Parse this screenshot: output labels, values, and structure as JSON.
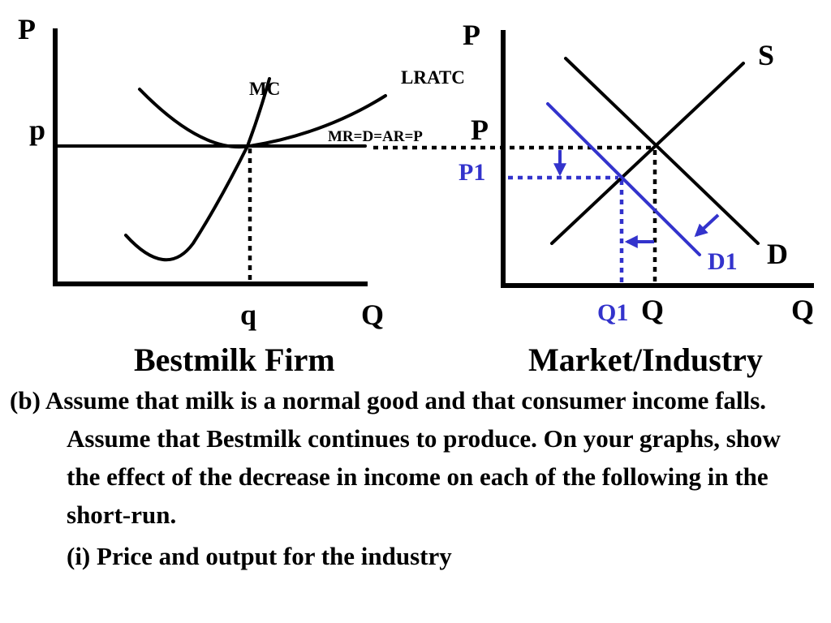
{
  "firm_graph": {
    "y_axis_label": "P",
    "x_axis_label": "Q",
    "price_label": "p",
    "quantity_label": "q",
    "mc_label": "MC",
    "lratc_label": "LRATC",
    "demand_label": "MR=D=AR=P",
    "title": "Bestmilk Firm"
  },
  "market_graph": {
    "y_axis_label": "P",
    "x_axis_label": "Q",
    "price_label": "P",
    "new_price_label": "P1",
    "quantity_label": "Q",
    "new_quantity_label": "Q1",
    "supply_label": "S",
    "demand_label": "D",
    "new_demand_label": "D1",
    "title": "Market/Industry"
  },
  "colors": {
    "shift": "#3333cc",
    "base": "#000000"
  },
  "question": {
    "main": "(b) Assume that milk is a normal good and that consumer income falls.  Assume that Bestmilk continues to produce.  On your graphs, show the effect of the decrease in income on each of the following in the short-run.",
    "sub": "(i)  Price and output for the industry"
  }
}
